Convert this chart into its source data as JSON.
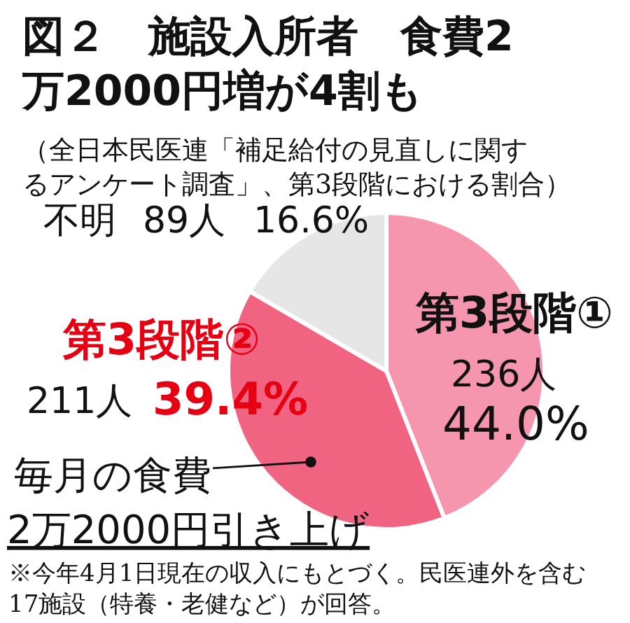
{
  "chart_data": {
    "type": "pie",
    "title": "図２　施設入所者　食費2万2000円増が4割も",
    "subtitle": "（全日本民医連「補足給付の見直しに関するアンケート調査」、第3段階における割合）",
    "categories": [
      "第3段階①",
      "第3段階②",
      "不明"
    ],
    "values": [
      236,
      211,
      89
    ],
    "colors": [
      "#f596ae",
      "#f06482",
      "#e6e6e6"
    ],
    "value_labels": [
      "236人 44.0%",
      "211人 39.4%",
      "89人 16.6%"
    ],
    "annotations": [
      "毎月の食費2万2000円引き上げ",
      "※今年4月1日現在の収入にもとづく。民医連外を含む17施設（特養・老健など）が回答。"
    ]
  }
}
